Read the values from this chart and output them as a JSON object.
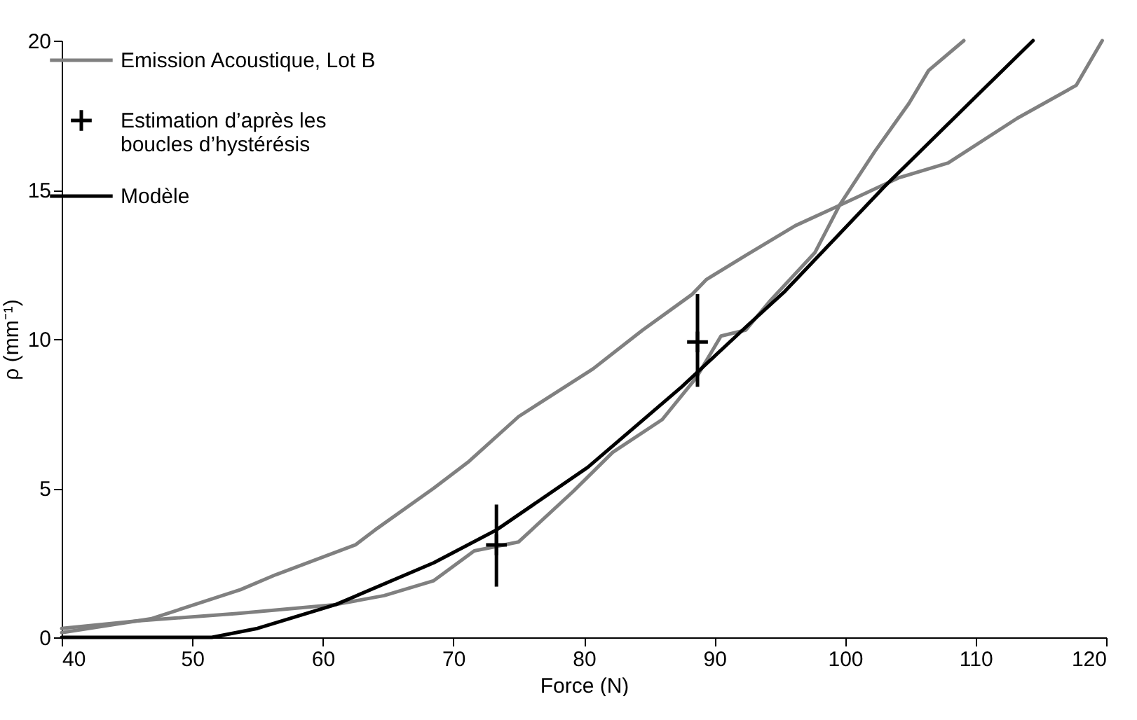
{
  "chart_data": {
    "type": "line",
    "xlabel": "Force (N)",
    "ylabel": "ρ (mm⁻¹)",
    "xlim": [
      40,
      120
    ],
    "ylim": [
      0,
      20
    ],
    "xticks": [
      40,
      50,
      60,
      70,
      80,
      90,
      100,
      110,
      120
    ],
    "yticks": [
      0,
      5,
      10,
      15,
      20
    ],
    "legend": "top left",
    "series": [
      {
        "name": "Emission Acoustique, Lot B",
        "color": "#808080",
        "x": [
          40,
          46.9,
          53.7,
          56.4,
          62.5,
          64,
          68.5,
          71.2,
          75,
          80.7,
          84.5,
          88.3,
          89.4,
          92.4,
          96.2,
          99.2,
          104.1,
          107.9,
          113.2,
          117.7,
          119.7
        ],
        "values": [
          0.16,
          0.63,
          1.6,
          2.1,
          3.1,
          3.6,
          5.0,
          5.9,
          7.4,
          9.0,
          10.3,
          11.5,
          12.0,
          12.8,
          13.8,
          14.4,
          15.4,
          15.9,
          17.4,
          18.5,
          20.0
        ]
      },
      {
        "color": "#808080",
        "x": [
          40,
          45.8,
          53.4,
          61,
          64.7,
          68.5,
          71.6,
          75,
          79.2,
          82.2,
          86,
          88.6,
          90.5,
          92.4,
          94.3,
          97.7,
          99.6,
          102.3,
          104.9,
          106.4,
          109.1
        ],
        "values": [
          0.3,
          0.55,
          0.8,
          1.1,
          1.4,
          1.9,
          2.9,
          3.2,
          4.9,
          6.2,
          7.3,
          8.7,
          10.1,
          10.3,
          11.3,
          12.9,
          14.5,
          16.3,
          17.9,
          19.0,
          20.0
        ]
      },
      {
        "name": "Estimation d’après les boucles d’hystérésis",
        "type": "scatter",
        "marker": "cross",
        "color": "#000000",
        "x": [
          73.3,
          88.7
        ],
        "values": [
          3.1,
          9.9
        ],
        "errors": [
          [
            1.7,
            4.45
          ],
          [
            8.4,
            11.5
          ]
        ]
      },
      {
        "name": "Modèle",
        "color": "#000000",
        "x": [
          40,
          51.5,
          55,
          61,
          68.5,
          73.3,
          80.3,
          87.5,
          92.4,
          95.4,
          103,
          109.5,
          114.4
        ],
        "values": [
          0,
          0,
          0.3,
          1.1,
          2.5,
          3.6,
          5.7,
          8.4,
          10.4,
          11.6,
          15.1,
          17.9,
          20.0
        ]
      }
    ]
  }
}
